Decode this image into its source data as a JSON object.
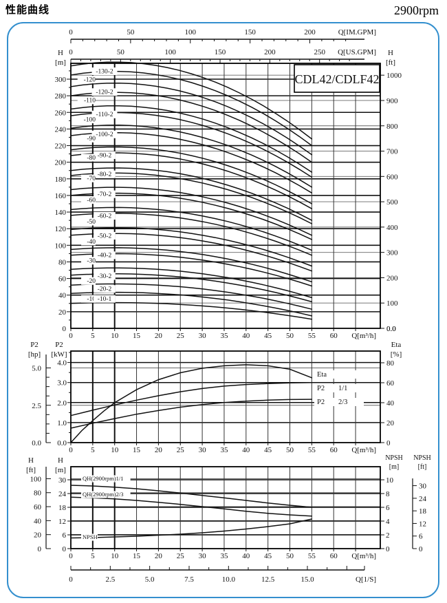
{
  "header": {
    "title_cn": "性能曲线",
    "rpm": "2900rpm",
    "model": "CDL42/CDLF42"
  },
  "scale_bars": {
    "im_gpm": {
      "label": "Q[IM.GPM]",
      "ticks": [
        0,
        50,
        100,
        150,
        200
      ],
      "minor_step": 10,
      "max_minor": 230,
      "gpm_per_m3h": 3.6662
    },
    "us_gpm": {
      "label": "Q[US.GPM]",
      "ticks": [
        0,
        50,
        100,
        150,
        200,
        250
      ],
      "minor_step": 10,
      "max_minor": 280,
      "gpm_per_m3h": 4.4029
    },
    "l_s": {
      "label": "Q[1/S]",
      "ticks": [
        "0",
        "2.5",
        "5.0",
        "7.5",
        "10.0",
        "12.5",
        "15.0"
      ],
      "minor_step": 1.25,
      "max_minor": 17.5,
      "m3h_per_ls": 3.6
    }
  },
  "chart_data": [
    {
      "name": "main_qh_family",
      "type": "line",
      "title": "CDL42/CDLF42",
      "x": {
        "label": "Q[m³/h]",
        "min": 0,
        "max": 70,
        "grid_step": 5,
        "tick_labels": [
          0,
          5,
          10,
          15,
          20,
          25,
          30,
          35,
          40,
          45,
          50,
          55,
          60
        ]
      },
      "y_left": {
        "label": "H [m]",
        "min": 0,
        "max": 320,
        "tick_step": 20,
        "tick_labels": [
          0,
          20,
          40,
          60,
          80,
          100,
          120,
          140,
          160,
          180,
          200,
          220,
          240,
          260,
          280,
          300
        ]
      },
      "y_right": {
        "label": "H [ft]",
        "tick_labels": [
          "0.0",
          "100",
          "200",
          "300",
          "400",
          "500",
          "600",
          "700",
          "800",
          "900",
          "1000"
        ]
      },
      "curve_model": "quadratic head curve, peak near Q=10 m3/h, curves end at Q=55 m3/h",
      "curves": [
        {
          "label": "-130-2",
          "h0": 316,
          "h55": 228,
          "label_h": 310,
          "col": "right"
        },
        {
          "label": "-120",
          "h0": 305,
          "h55": 220,
          "label_h": 300,
          "col": "left"
        },
        {
          "label": "-120-2",
          "h0": 291,
          "h55": 209,
          "label_h": 285,
          "col": "right"
        },
        {
          "label": "-110",
          "h0": 280,
          "h55": 200,
          "label_h": 275,
          "col": "left"
        },
        {
          "label": "-110-2",
          "h0": 264,
          "h55": 188,
          "label_h": 258,
          "col": "right"
        },
        {
          "label": "-100",
          "h0": 256,
          "h55": 182,
          "label_h": 252,
          "col": "left"
        },
        {
          "label": "-100-2",
          "h0": 241,
          "h55": 170,
          "label_h": 234,
          "col": "right"
        },
        {
          "label": "-90",
          "h0": 232,
          "h55": 163,
          "label_h": 229,
          "col": "left"
        },
        {
          "label": "-90-2",
          "h0": 215,
          "h55": 150,
          "label_h": 209,
          "col": "right"
        },
        {
          "label": "-80",
          "h0": 208,
          "h55": 144,
          "label_h": 206,
          "col": "left"
        },
        {
          "label": "-80-2",
          "h0": 190,
          "h55": 130,
          "label_h": 186,
          "col": "right"
        },
        {
          "label": "-70",
          "h0": 184,
          "h55": 126,
          "label_h": 181,
          "col": "left"
        },
        {
          "label": "-70-2",
          "h0": 167,
          "h55": 112,
          "label_h": 162,
          "col": "right"
        },
        {
          "label": "-60",
          "h0": 160,
          "h55": 107,
          "label_h": 155,
          "col": "left"
        },
        {
          "label": "-60-2",
          "h0": 143,
          "h55": 94,
          "label_h": 136,
          "col": "right"
        },
        {
          "label": "-50",
          "h0": 136,
          "h55": 88,
          "label_h": 129,
          "col": "left"
        },
        {
          "label": "-50-2",
          "h0": 119,
          "h55": 75,
          "label_h": 112,
          "col": "right"
        },
        {
          "label": "-40",
          "h0": 112,
          "h55": 69,
          "label_h": 105,
          "col": "left"
        },
        {
          "label": "-40-2",
          "h0": 95,
          "h55": 56,
          "label_h": 88.5,
          "col": "right"
        },
        {
          "label": "-30",
          "h0": 88,
          "h55": 51,
          "label_h": 82,
          "col": "left"
        },
        {
          "label": "-30-2",
          "h0": 71,
          "h55": 37,
          "label_h": 63.5,
          "col": "right"
        },
        {
          "label": "-20",
          "h0": 64,
          "h55": 32,
          "label_h": 57.5,
          "col": "left"
        },
        {
          "label": "-20-2",
          "h0": 52,
          "h55": 23,
          "label_h": 48,
          "col": "right"
        },
        {
          "label": "-10",
          "h0": 42,
          "h55": 15,
          "label_h": 36,
          "col": "left"
        },
        {
          "label": "-10-1",
          "h0": 30,
          "h55": 11,
          "label_h": 36,
          "col": "right"
        }
      ]
    },
    {
      "name": "power_efficiency",
      "type": "line",
      "x": {
        "label": "Q[m³/h]",
        "tick_labels": [
          0,
          5,
          10,
          15,
          20,
          25,
          30,
          35,
          40,
          45,
          50,
          55,
          60
        ]
      },
      "y_left_outer": {
        "label": "P2 [hp]",
        "tick_labels": [
          "0.0",
          "2.5",
          "5.0"
        ],
        "tick_values": [
          0,
          2.5,
          5
        ]
      },
      "y_left": {
        "label": "P2 [kW]",
        "tick_labels": [
          "0.0",
          "1.0",
          "2.0",
          "3.0",
          "4.0"
        ],
        "tick_values": [
          0,
          1,
          2,
          3,
          4
        ]
      },
      "y_right": {
        "label": "Eta [%]",
        "tick_labels": [
          "0",
          "20",
          "40",
          "60",
          "80"
        ],
        "tick_values": [
          0,
          20,
          40,
          60,
          80
        ]
      },
      "series": [
        {
          "name": "Eta",
          "axis": "eta",
          "label_parts": [
            "Eta"
          ],
          "points": [
            [
              0,
              0
            ],
            [
              2.5,
              12
            ],
            [
              5,
              22
            ],
            [
              7.5,
              31.5
            ],
            [
              10,
              40
            ],
            [
              15,
              53
            ],
            [
              20,
              63
            ],
            [
              25,
              70
            ],
            [
              30,
              74.5
            ],
            [
              35,
              77
            ],
            [
              40,
              78
            ],
            [
              45,
              77
            ],
            [
              50,
              73.5
            ],
            [
              55,
              65
            ]
          ]
        },
        {
          "name": "P2 1/1",
          "axis": "kw",
          "label_parts": [
            "P2",
            "1/1"
          ],
          "points": [
            [
              0,
              1.35
            ],
            [
              5,
              1.62
            ],
            [
              10,
              1.88
            ],
            [
              15,
              2.12
            ],
            [
              20,
              2.34
            ],
            [
              25,
              2.54
            ],
            [
              30,
              2.7
            ],
            [
              35,
              2.82
            ],
            [
              40,
              2.9
            ],
            [
              45,
              2.95
            ],
            [
              50,
              2.98
            ],
            [
              55,
              3.0
            ]
          ]
        },
        {
          "name": "P2 2/3",
          "axis": "kw",
          "label_parts": [
            "P2",
            "2/3"
          ],
          "points": [
            [
              0,
              0.72
            ],
            [
              5,
              0.97
            ],
            [
              10,
              1.2
            ],
            [
              15,
              1.42
            ],
            [
              20,
              1.6
            ],
            [
              25,
              1.77
            ],
            [
              30,
              1.9
            ],
            [
              35,
              2.0
            ],
            [
              40,
              2.07
            ],
            [
              45,
              2.12
            ],
            [
              50,
              2.15
            ],
            [
              55,
              2.16
            ]
          ]
        }
      ]
    },
    {
      "name": "qh_npsh",
      "type": "line",
      "x": {
        "label": "Q[m³/h]",
        "tick_labels": [
          0,
          5,
          10,
          15,
          20,
          25,
          30,
          35,
          40,
          45,
          50,
          55,
          60
        ]
      },
      "y_left_outer": {
        "label": "H [ft]",
        "tick_labels": [
          "0",
          "20",
          "40",
          "60",
          "80",
          "100"
        ],
        "tick_values": [
          0,
          20,
          40,
          60,
          80,
          100
        ]
      },
      "y_left": {
        "label": "H [m]",
        "tick_labels": [
          "0",
          "6",
          "12",
          "18",
          "24",
          "30"
        ],
        "tick_values": [
          0,
          6,
          12,
          18,
          24,
          30
        ]
      },
      "y_right": {
        "label": "NPSH [m]",
        "tick_labels": [
          "0",
          "2",
          "4",
          "6",
          "8",
          "10"
        ],
        "tick_values": [
          0,
          2,
          4,
          6,
          8,
          10
        ]
      },
      "y_right_outer": {
        "label": "NPSH [ft]",
        "tick_labels": [
          "0",
          "6",
          "12",
          "18",
          "24",
          "30"
        ],
        "tick_values": [
          0,
          6,
          12,
          18,
          24,
          30
        ]
      },
      "series": [
        {
          "name": "QH(2900rpm)1/1",
          "axis": "h",
          "points": [
            [
              0,
              27.6
            ],
            [
              5,
              27.3
            ],
            [
              10,
              26.8
            ],
            [
              15,
              26.1
            ],
            [
              20,
              25.2
            ],
            [
              25,
              24.2
            ],
            [
              30,
              23.2
            ],
            [
              35,
              22.1
            ],
            [
              40,
              21.0
            ],
            [
              45,
              19.9
            ],
            [
              50,
              18.9
            ],
            [
              55,
              18.0
            ]
          ]
        },
        {
          "name": "QH(2900rpm)2/3",
          "axis": "h",
          "points": [
            [
              0,
              22.4
            ],
            [
              5,
              22.1
            ],
            [
              10,
              21.7
            ],
            [
              15,
              21.0
            ],
            [
              20,
              20.2
            ],
            [
              25,
              19.3
            ],
            [
              30,
              18.3
            ],
            [
              35,
              17.3
            ],
            [
              40,
              16.3
            ],
            [
              45,
              15.4
            ],
            [
              50,
              14.7
            ],
            [
              55,
              14.2
            ]
          ]
        },
        {
          "name": "NPSH",
          "axis": "npsh",
          "points": [
            [
              0,
              1.55
            ],
            [
              5,
              1.6
            ],
            [
              10,
              1.7
            ],
            [
              15,
              1.8
            ],
            [
              20,
              1.95
            ],
            [
              25,
              2.1
            ],
            [
              30,
              2.3
            ],
            [
              35,
              2.55
            ],
            [
              40,
              2.85
            ],
            [
              45,
              3.2
            ],
            [
              50,
              3.6
            ],
            [
              55,
              4.3
            ]
          ]
        }
      ]
    }
  ]
}
